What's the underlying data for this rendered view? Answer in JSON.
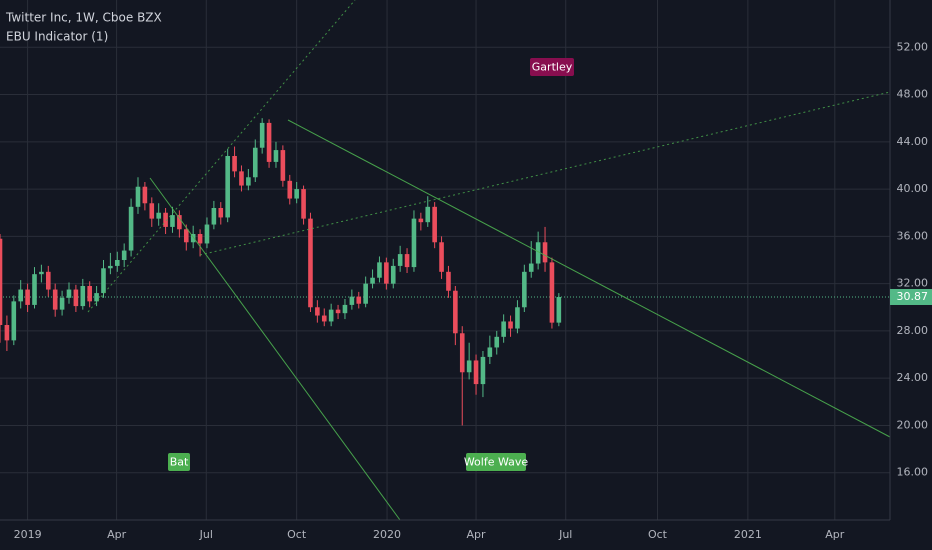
{
  "chart_data": {
    "type": "candlestick",
    "title": "Twitter Inc, 1W, Cboe BZX",
    "subtitle": "EBU Indicator (1)",
    "annotations": [
      "Gartley",
      "Bat",
      "Wolfe Wave"
    ],
    "last_price": 30.87,
    "up_color": "#53b987",
    "down_color": "#eb4d5c",
    "grid": true,
    "xlim": [
      -4,
      125
    ],
    "xticks": [
      {
        "value": 0,
        "label": "2019"
      },
      {
        "value": 12.9,
        "label": "Apr"
      },
      {
        "value": 25.9,
        "label": "Jul"
      },
      {
        "value": 39,
        "label": "Oct"
      },
      {
        "value": 52.1,
        "label": "2020"
      },
      {
        "value": 65,
        "label": "Apr"
      },
      {
        "value": 78,
        "label": "Jul"
      },
      {
        "value": 91.3,
        "label": "Oct"
      },
      {
        "value": 104.4,
        "label": "2021"
      },
      {
        "value": 117,
        "label": "Apr"
      }
    ],
    "ylim": [
      12,
      56
    ],
    "yticks": [
      {
        "value": 16,
        "label": "16.00"
      },
      {
        "value": 20,
        "label": "20.00"
      },
      {
        "value": 24,
        "label": "24.00"
      },
      {
        "value": 28,
        "label": "28.00"
      },
      {
        "value": 32,
        "label": "32.00"
      },
      {
        "value": 36,
        "label": "36.00"
      },
      {
        "value": 40,
        "label": "40.00"
      },
      {
        "value": 44,
        "label": "44.00"
      },
      {
        "value": 48,
        "label": "48.00"
      },
      {
        "value": 52,
        "label": "52.00"
      }
    ],
    "x": [
      -4,
      -3,
      -2,
      -1,
      0,
      1,
      2,
      3,
      4,
      5,
      6,
      7,
      8,
      9,
      10,
      11,
      12,
      13,
      14,
      15,
      16,
      17,
      18,
      19,
      20,
      21,
      22,
      23,
      24,
      25,
      26,
      27,
      28,
      29,
      30,
      31,
      32,
      33,
      34,
      35,
      36,
      37,
      38,
      39,
      40,
      41,
      42,
      43,
      44,
      45,
      46,
      47,
      48,
      49,
      50,
      51,
      52,
      53,
      54,
      55,
      56,
      57,
      58,
      59,
      60,
      61,
      62,
      63,
      64,
      65,
      66,
      67,
      68,
      69,
      70,
      71,
      72,
      73,
      74,
      75,
      76,
      77
    ],
    "open": [
      35.8,
      28.5,
      27.2,
      30.5,
      31.5,
      30.2,
      32.8,
      33.0,
      31.5,
      29.8,
      30.8,
      31.5,
      30.1,
      31.8,
      30.5,
      31.2,
      33.3,
      33.5,
      34.0,
      34.8,
      38.5,
      40.2,
      38.8,
      37.5,
      38.0,
      36.8,
      37.8,
      36.6,
      35.5,
      36.2,
      35.4,
      37.0,
      38.4,
      37.6,
      42.8,
      41.5,
      40.3,
      41.0,
      43.5,
      45.6,
      42.3,
      43.3,
      40.7,
      39.2,
      40.0,
      37.5,
      30.0,
      29.3,
      28.8,
      29.8,
      29.5,
      30.2,
      30.9,
      30.3,
      32.0,
      32.5,
      33.8,
      32.0,
      33.5,
      34.5,
      33.4,
      37.5,
      37.2,
      38.5,
      35.5,
      33.0,
      31.4,
      27.8,
      24.5,
      25.5,
      23.5,
      25.8,
      26.6,
      27.5,
      28.8,
      28.2,
      30.0,
      33.0,
      33.7,
      35.5,
      33.8,
      28.7
    ],
    "high": [
      36.2,
      29.3,
      31.0,
      32.3,
      32.0,
      33.4,
      33.6,
      33.5,
      32.0,
      31.4,
      32.1,
      31.9,
      32.4,
      32.2,
      31.8,
      34.0,
      34.6,
      34.7,
      35.4,
      39.2,
      41.0,
      40.6,
      39.3,
      38.8,
      38.4,
      38.5,
      38.2,
      37.0,
      36.9,
      36.6,
      37.6,
      39.0,
      38.9,
      43.4,
      43.6,
      42.0,
      41.7,
      44.2,
      46.0,
      45.9,
      44.0,
      43.7,
      41.2,
      40.6,
      40.3,
      38.0,
      30.6,
      29.9,
      30.3,
      30.2,
      30.7,
      31.5,
      31.3,
      32.6,
      33.2,
      34.3,
      34.2,
      34.1,
      35.2,
      35.0,
      38.2,
      38.0,
      39.4,
      38.9,
      36.0,
      33.5,
      31.8,
      28.4,
      27.0,
      26.0,
      26.3,
      27.6,
      28.0,
      29.4,
      29.3,
      30.6,
      33.6,
      35.6,
      36.4,
      36.8,
      34.2,
      31.2
    ],
    "low": [
      27.0,
      26.3,
      26.8,
      29.9,
      29.6,
      29.9,
      32.1,
      30.9,
      29.2,
      29.3,
      30.3,
      29.6,
      29.8,
      30.0,
      30.1,
      30.8,
      32.8,
      33.0,
      33.4,
      34.3,
      37.9,
      38.2,
      36.8,
      36.9,
      36.2,
      36.3,
      35.9,
      34.8,
      35.0,
      34.3,
      35.0,
      36.6,
      37.0,
      37.2,
      41.0,
      39.8,
      39.9,
      40.6,
      43.0,
      41.8,
      41.8,
      40.2,
      38.7,
      38.8,
      37.0,
      29.6,
      28.7,
      28.4,
      28.4,
      29.0,
      29.0,
      29.8,
      29.9,
      30.0,
      31.6,
      32.1,
      31.5,
      31.6,
      33.0,
      32.9,
      33.0,
      36.5,
      36.8,
      35.0,
      32.4,
      30.8,
      26.8,
      20.0,
      23.9,
      22.6,
      22.4,
      25.2,
      26.0,
      27.0,
      27.5,
      27.8,
      29.6,
      32.5,
      33.2,
      33.0,
      28.2,
      28.4
    ],
    "close": [
      28.5,
      27.2,
      30.5,
      31.5,
      30.2,
      32.8,
      33.0,
      31.5,
      29.8,
      30.8,
      31.5,
      30.1,
      31.8,
      30.5,
      31.2,
      33.3,
      33.5,
      34.0,
      34.8,
      38.5,
      40.2,
      38.8,
      37.5,
      38.0,
      36.8,
      37.8,
      36.6,
      35.5,
      36.2,
      35.4,
      37.0,
      38.4,
      37.6,
      42.8,
      41.5,
      40.3,
      41.0,
      43.5,
      45.6,
      42.3,
      43.3,
      40.7,
      39.2,
      40.0,
      37.5,
      30.0,
      29.3,
      28.8,
      29.8,
      29.5,
      30.2,
      30.9,
      30.3,
      32.0,
      32.5,
      33.8,
      32.0,
      33.5,
      34.5,
      33.4,
      37.5,
      37.2,
      38.5,
      35.5,
      33.0,
      31.4,
      27.8,
      24.5,
      25.5,
      23.5,
      25.8,
      26.6,
      27.5,
      28.8,
      28.2,
      30.0,
      33.0,
      33.7,
      35.5,
      33.8,
      28.7,
      30.87
    ]
  }
}
